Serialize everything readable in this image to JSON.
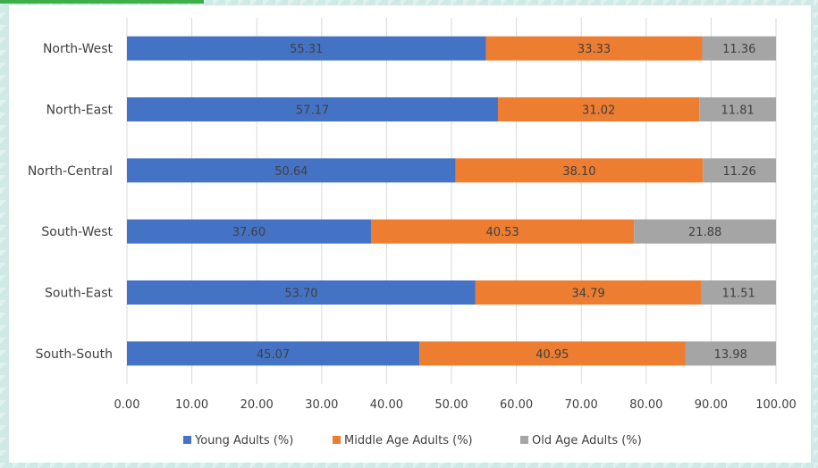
{
  "chart_data": {
    "type": "bar",
    "orientation": "horizontal",
    "stacked": true,
    "title": "",
    "xlabel": "",
    "ylabel": "",
    "xlim": [
      0,
      100
    ],
    "xticks": [
      "0.00",
      "10.00",
      "20.00",
      "30.00",
      "40.00",
      "50.00",
      "60.00",
      "70.00",
      "80.00",
      "90.00",
      "100.00"
    ],
    "categories": [
      "North-West",
      "North-East",
      "North-Central",
      "South-West",
      "South-East",
      "South-South"
    ],
    "series": [
      {
        "name": "Young Adults (%)",
        "color": "#4472c4",
        "values": [
          55.31,
          57.17,
          50.64,
          37.6,
          53.7,
          45.07
        ],
        "labels": [
          "55.31",
          "57.17",
          "50.64",
          "37.60",
          "53.70",
          "45.07"
        ]
      },
      {
        "name": "Middle Age Adults (%)",
        "color": "#ed7d31",
        "values": [
          33.33,
          31.02,
          38.1,
          40.53,
          34.79,
          40.95
        ],
        "labels": [
          "33.33",
          "31.02",
          "38.10",
          "40.53",
          "34.79",
          "40.95"
        ]
      },
      {
        "name": "Old Age Adults (%)",
        "color": "#a5a5a5",
        "values": [
          11.36,
          11.81,
          11.26,
          21.88,
          11.51,
          13.98
        ],
        "labels": [
          "11.36",
          "11.81",
          "11.26",
          "21.88",
          "11.51",
          "13.98"
        ]
      }
    ],
    "gridlines": "vertical",
    "legend": "bottom"
  }
}
